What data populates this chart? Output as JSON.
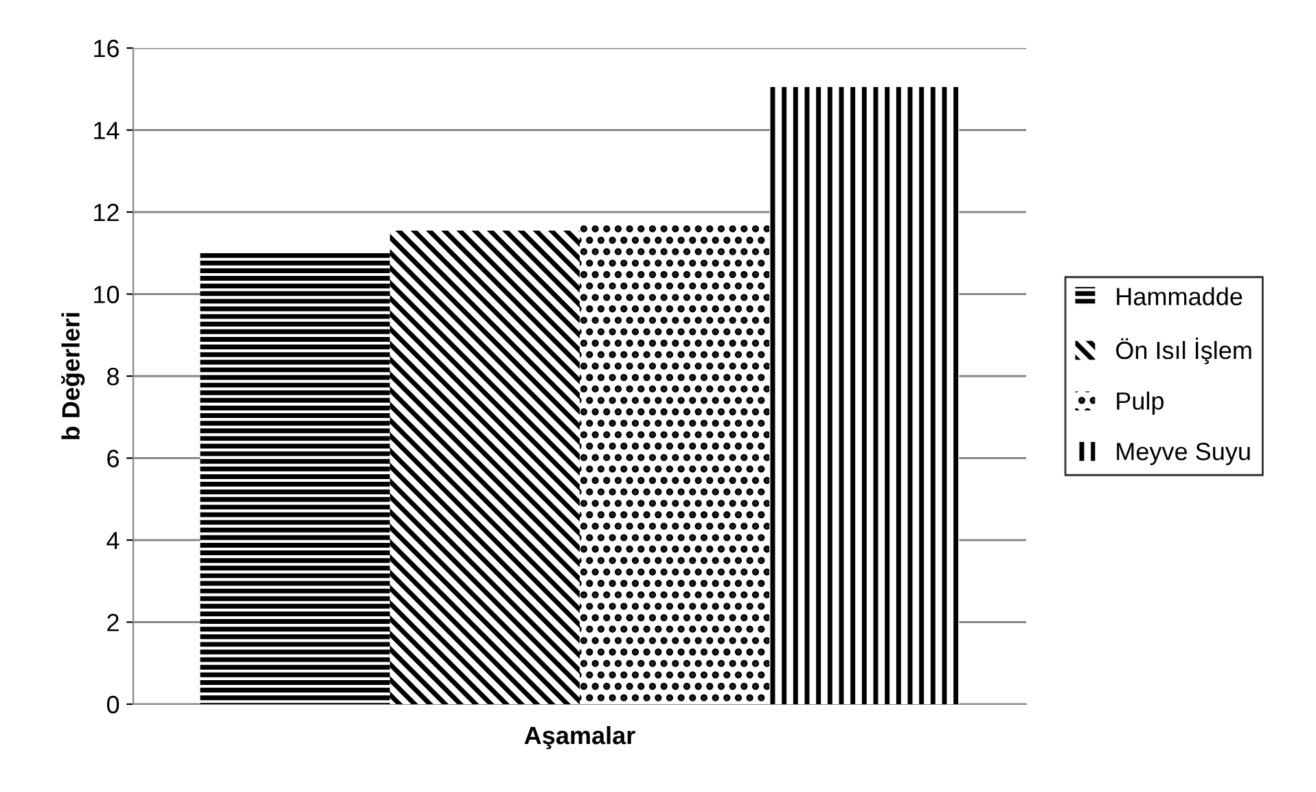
{
  "chart_data": {
    "type": "bar",
    "xlabel": "Aşamalar",
    "ylabel": "b Değerleri",
    "categories": [
      null
    ],
    "series": [
      {
        "name": "Hammadde",
        "color": "#000000",
        "values": [
          11.0
        ]
      },
      {
        "name": "Ön Isıl İşlem",
        "color": "#000000",
        "values": [
          11.55
        ]
      },
      {
        "name": "Pulp",
        "color": "#000000",
        "values": [
          11.7
        ]
      },
      {
        "name": "Meyve Suyu",
        "color": "#000000",
        "values": [
          15.05
        ]
      }
    ],
    "ylim": [
      0,
      16
    ],
    "yticks": [
      0,
      2,
      4,
      6,
      8,
      10,
      12,
      14,
      16
    ],
    "grid": "y",
    "legend": "right"
  }
}
